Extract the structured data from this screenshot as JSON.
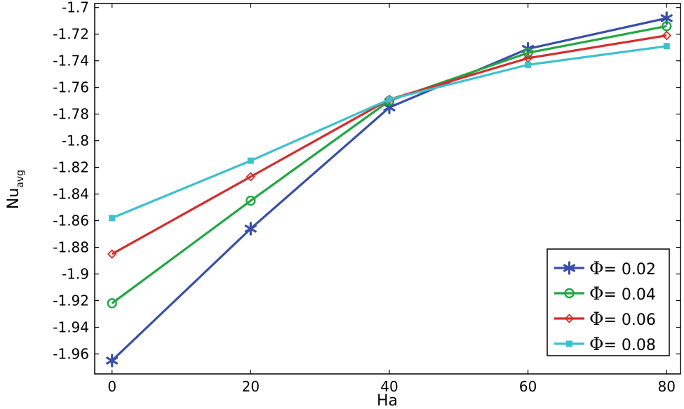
{
  "chart_data": {
    "type": "line",
    "title": "",
    "xlabel": "Ha",
    "ylabel": "Nu",
    "ylabel_sub": "avg",
    "x": [
      0,
      20,
      40,
      60,
      80
    ],
    "xlim": [
      -2.5,
      82
    ],
    "ylim": [
      -1.975,
      -1.697
    ],
    "x_ticks": [
      0,
      20,
      40,
      60,
      80
    ],
    "x_tick_labels": [
      "0",
      "20",
      "40",
      "60",
      "80"
    ],
    "y_ticks": [
      -1.7,
      -1.72,
      -1.74,
      -1.76,
      -1.78,
      -1.8,
      -1.82,
      -1.84,
      -1.86,
      -1.88,
      -1.9,
      -1.92,
      -1.94,
      -1.96
    ],
    "y_tick_labels": [
      "-1.7",
      "-1.72",
      "-1.74",
      "-1.76",
      "-1.78",
      "-1.8",
      "-1.82",
      "-1.84",
      "-1.86",
      "-1.88",
      "-1.9",
      "-1.92",
      "-1.94",
      "-1.96"
    ],
    "grid": false,
    "legend_position": "bottom-right",
    "series": [
      {
        "name": "Φ= 0.02",
        "symbol": "Φ",
        "value_label": "= 0.02",
        "color": "#3b4fa8",
        "marker": "asterisk",
        "values": [
          -1.965,
          -1.866,
          -1.775,
          -1.731,
          -1.708
        ]
      },
      {
        "name": "Φ= 0.04",
        "symbol": "Φ",
        "value_label": "= 0.04",
        "color": "#21a744",
        "marker": "circle",
        "values": [
          -1.922,
          -1.845,
          -1.77,
          -1.734,
          -1.714
        ]
      },
      {
        "name": "Φ= 0.06",
        "symbol": "Φ",
        "value_label": "= 0.06",
        "color": "#d42e2e",
        "marker": "diamond",
        "values": [
          -1.885,
          -1.827,
          -1.769,
          -1.738,
          -1.721
        ]
      },
      {
        "name": "Φ= 0.08",
        "symbol": "Φ",
        "value_label": "= 0.08",
        "color": "#3ec1cc",
        "marker": "square",
        "values": [
          -1.858,
          -1.815,
          -1.769,
          -1.743,
          -1.729
        ]
      }
    ]
  }
}
